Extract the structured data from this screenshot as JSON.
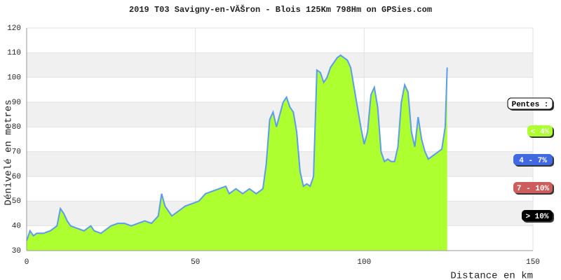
{
  "chart_data": {
    "type": "area",
    "title": "2019 T03 Savigny-en-VĂŠron - Blois 125Km 798Hm on GPSies.com",
    "y_label": "Dénivelé en metres",
    "x_label": "Distance en km",
    "x": [
      0,
      1,
      2,
      3,
      5,
      7,
      9,
      10,
      11,
      12,
      13,
      15,
      17,
      19,
      20,
      22,
      25,
      27,
      29,
      31,
      33,
      35,
      37,
      39,
      40,
      41,
      42,
      43,
      45,
      47,
      49,
      51,
      53,
      55,
      57,
      59,
      60,
      62,
      64,
      66,
      68,
      70,
      71,
      72,
      73,
      74,
      75,
      76,
      77,
      78,
      79,
      80,
      81,
      82,
      83,
      84,
      85,
      86,
      87,
      88,
      89,
      90,
      91,
      92,
      93,
      94,
      95,
      96,
      97,
      98,
      99,
      100,
      101,
      102,
      103,
      104,
      105,
      106,
      107,
      108,
      109,
      110,
      111,
      112,
      113,
      114,
      115,
      116,
      117,
      118,
      119,
      120,
      121,
      122,
      123,
      124,
      124.6
    ],
    "values": [
      34,
      38,
      36,
      37,
      37,
      38,
      40,
      47,
      45,
      42,
      40,
      39,
      38,
      40,
      38,
      37,
      40,
      41,
      41,
      40,
      41,
      42,
      41,
      44,
      53,
      48,
      46,
      44,
      46,
      48,
      49,
      50,
      53,
      54,
      55,
      56,
      53,
      55,
      53,
      55,
      53,
      55,
      65,
      83,
      86,
      80,
      85,
      90,
      92,
      88,
      86,
      78,
      62,
      56,
      57,
      56,
      60,
      103,
      102,
      98,
      100,
      104,
      106,
      108,
      109,
      108,
      107,
      104,
      96,
      88,
      80,
      73,
      78,
      93,
      96,
      88,
      70,
      66,
      67,
      66,
      66,
      72,
      90,
      97,
      94,
      78,
      72,
      84,
      75,
      70,
      67,
      68,
      69,
      70,
      71,
      80,
      104
    ],
    "fill_color": "#adff2f",
    "line_color": "#5b9bf0",
    "xlim": [
      0,
      150
    ],
    "ylim": [
      30,
      120
    ],
    "xticks": [
      0,
      50,
      100,
      150
    ],
    "yticks": [
      30,
      40,
      50,
      60,
      70,
      80,
      90,
      100,
      110,
      120
    ],
    "grid": true,
    "legend": {
      "title": "Pentes :",
      "items": [
        {
          "label": "< 4%",
          "color": "#adff2f"
        },
        {
          "label": "4 - 7%",
          "color": "#4169e1"
        },
        {
          "label": "7 - 10%",
          "color": "#cd5c5c"
        },
        {
          "label": "> 10%",
          "color": "#000000"
        }
      ]
    }
  }
}
